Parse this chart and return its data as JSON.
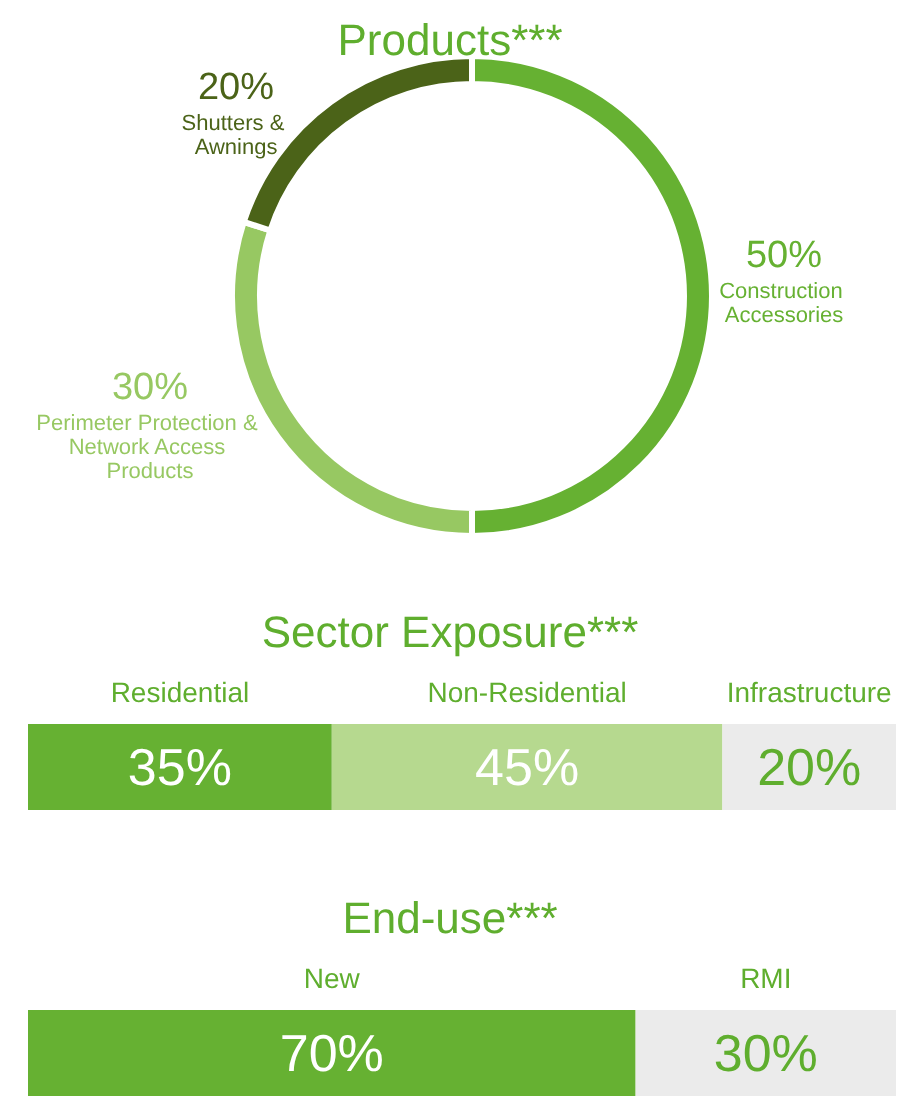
{
  "chart_data": [
    {
      "type": "donut",
      "title": "Products***",
      "categories": [
        "Construction Accessories",
        "Perimeter Protection & Network Access Products",
        "Shutters & Awnings"
      ],
      "values": [
        50,
        30,
        20
      ],
      "colors": [
        "#66b132",
        "#97c862",
        "#4b6318"
      ],
      "value_labels": [
        "50%",
        "30%",
        "20%"
      ]
    },
    {
      "type": "bar",
      "title": "Sector Exposure***",
      "orientation": "horizontal",
      "stacked": true,
      "categories": [
        null
      ],
      "xlim": [
        0,
        100
      ],
      "tick_labels": false,
      "series": [
        {
          "name": "Residential",
          "color": "#66b132",
          "values": [
            35
          ],
          "value_labels": [
            "35%"
          ]
        },
        {
          "name": "Non-Residential",
          "color": "#b6d98f",
          "values": [
            45
          ],
          "value_labels": [
            "45%"
          ]
        },
        {
          "name": "Infrastructure",
          "color": "#ebebeb",
          "values": [
            20
          ],
          "value_labels": [
            "20%"
          ]
        }
      ]
    },
    {
      "type": "bar",
      "title": "End-use***",
      "orientation": "horizontal",
      "stacked": true,
      "categories": [
        null
      ],
      "xlim": [
        0,
        100
      ],
      "tick_labels": false,
      "series": [
        {
          "name": "New",
          "color": "#66b132",
          "values": [
            70
          ],
          "value_labels": [
            "70%"
          ]
        },
        {
          "name": "RMI",
          "color": "#ebebeb",
          "values": [
            30
          ],
          "value_labels": [
            "30%"
          ]
        }
      ]
    }
  ]
}
